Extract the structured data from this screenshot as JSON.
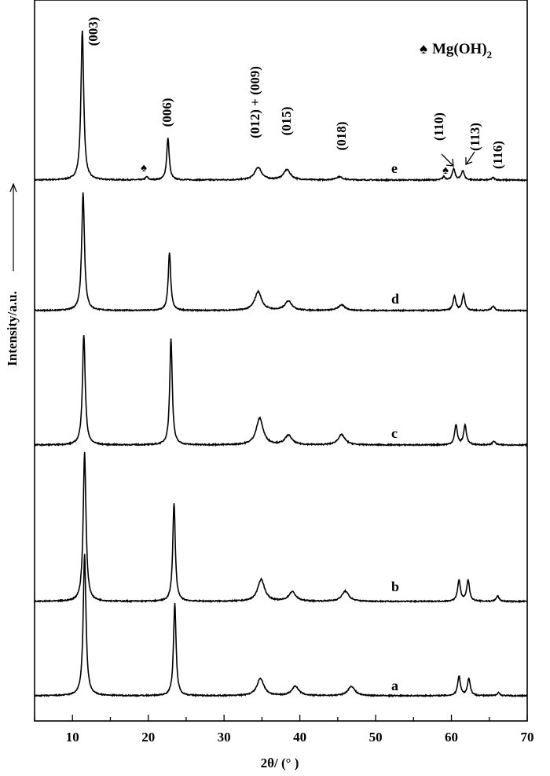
{
  "chart_data": {
    "type": "line",
    "xlabel": "2θ/ (°  )",
    "ylabel": "Intensity/a.u.",
    "xlim": [
      5,
      70
    ],
    "x_ticks": [
      "10",
      "20",
      "30",
      "40",
      "50",
      "60",
      "70"
    ],
    "legend": {
      "symbol": "♠",
      "text": "Mg(OH)",
      "subscript": "2"
    },
    "peak_labels": [
      "(003)",
      "(006)",
      "(012) + (009)",
      "(015)",
      "(018)",
      "(110)",
      "(113)",
      "(116)"
    ],
    "series": [
      {
        "name": "e",
        "peaks": [
          [
            11.3,
            190
          ],
          [
            19.8,
            4
          ],
          [
            22.6,
            53
          ],
          [
            34.5,
            16
          ],
          [
            38.3,
            13
          ],
          [
            45.2,
            4
          ],
          [
            59.0,
            4
          ],
          [
            60.3,
            14
          ],
          [
            61.5,
            12
          ],
          [
            65.5,
            3
          ]
        ]
      },
      {
        "name": "d",
        "peaks": [
          [
            11.4,
            150
          ],
          [
            22.8,
            73
          ],
          [
            34.5,
            24
          ],
          [
            38.5,
            12
          ],
          [
            45.5,
            7
          ],
          [
            60.4,
            18
          ],
          [
            61.6,
            20
          ],
          [
            65.5,
            6
          ]
        ]
      },
      {
        "name": "c",
        "peaks": [
          [
            11.5,
            140
          ],
          [
            23.0,
            135
          ],
          [
            34.7,
            34
          ],
          [
            38.5,
            12
          ],
          [
            45.5,
            13
          ],
          [
            60.6,
            25
          ],
          [
            61.8,
            25
          ],
          [
            65.6,
            5
          ]
        ]
      },
      {
        "name": "b",
        "peaks": [
          [
            11.6,
            190
          ],
          [
            23.4,
            125
          ],
          [
            34.9,
            28
          ],
          [
            39.0,
            12
          ],
          [
            46.0,
            13
          ],
          [
            61.0,
            27
          ],
          [
            62.2,
            27
          ],
          [
            66.1,
            7
          ]
        ]
      },
      {
        "name": "a",
        "peaks": [
          [
            11.6,
            180
          ],
          [
            23.5,
            118
          ],
          [
            34.8,
            22
          ],
          [
            39.4,
            12
          ],
          [
            46.8,
            12
          ],
          [
            61.0,
            25
          ],
          [
            62.3,
            22
          ],
          [
            66.2,
            4
          ]
        ]
      }
    ]
  }
}
